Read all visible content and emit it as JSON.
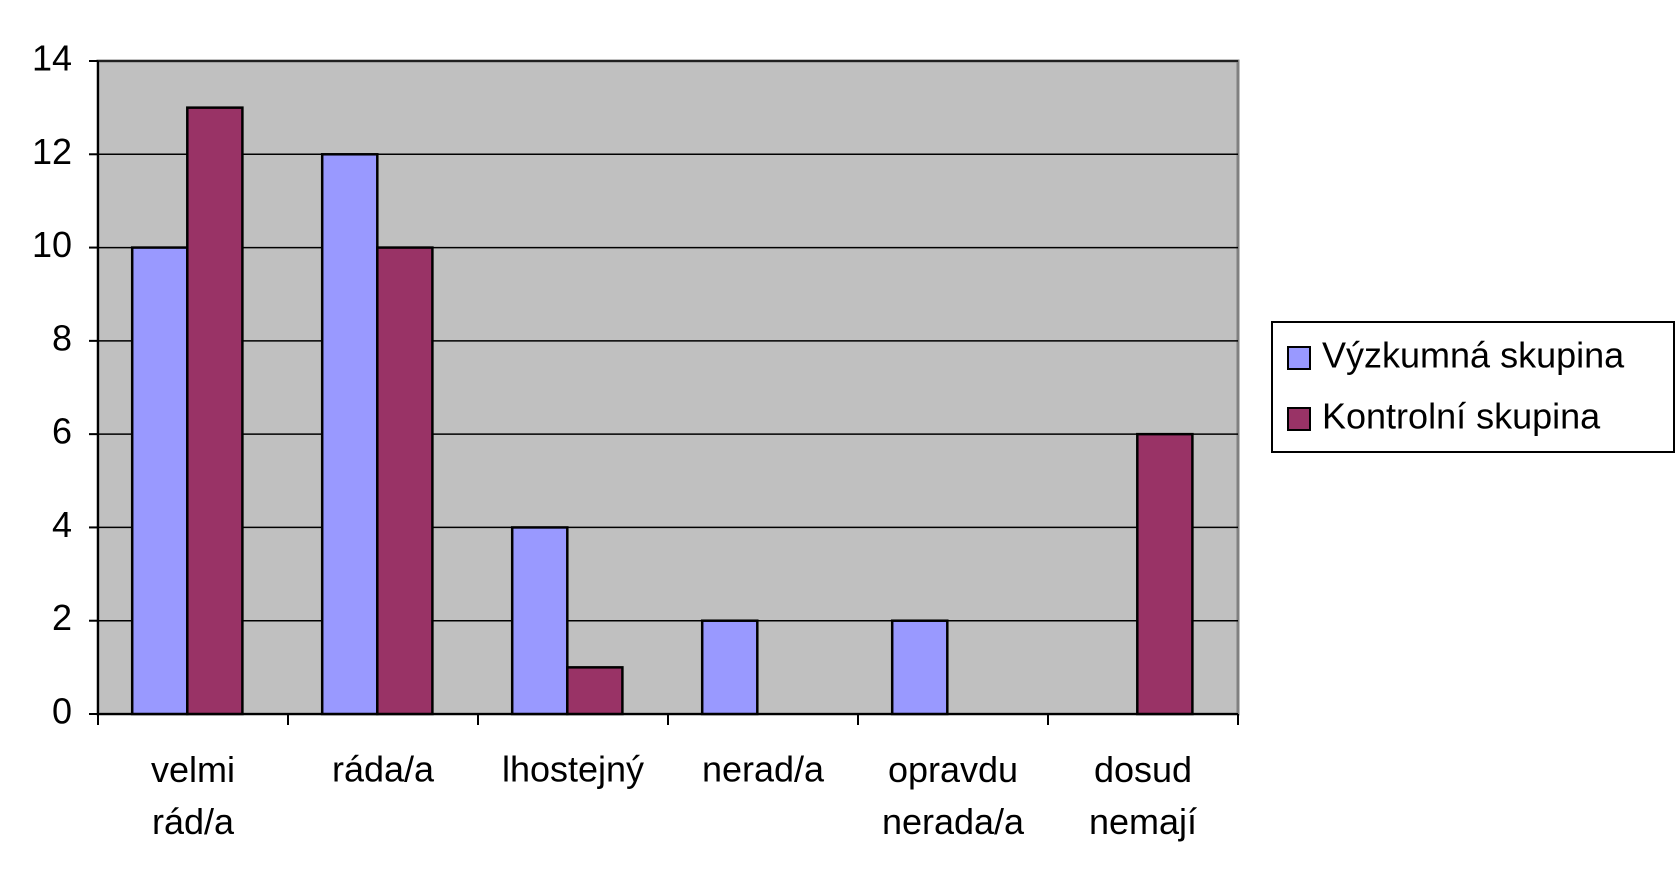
{
  "chart_data": {
    "type": "bar",
    "categories": [
      "velmi rád/a",
      "ráda/a",
      "lhostejný",
      "nerad/a",
      "opravdu nerada/a",
      "dosud nemají"
    ],
    "series": [
      {
        "name": "Výzkumná skupina",
        "color": "#9999ff",
        "values": [
          10,
          12,
          4,
          2,
          2,
          0
        ]
      },
      {
        "name": "Kontrolní skupina",
        "color": "#993366",
        "values": [
          13,
          10,
          1,
          0,
          0,
          6
        ]
      }
    ],
    "ylim": [
      0,
      14
    ],
    "yticks": [
      0,
      2,
      4,
      6,
      8,
      10,
      12,
      14
    ],
    "grid": true,
    "legend": "right"
  }
}
